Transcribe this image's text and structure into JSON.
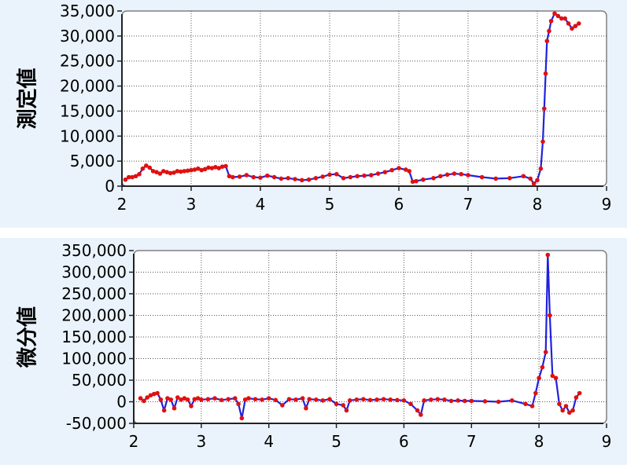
{
  "chart_data": [
    {
      "type": "line",
      "ylabel": "測定値",
      "xlim": [
        2,
        9
      ],
      "ylim": [
        0,
        35000
      ],
      "xticks": [
        "2",
        "3",
        "4",
        "5",
        "6",
        "7",
        "8",
        "9"
      ],
      "yticks": [
        "0",
        "5,000",
        "10,000",
        "15,000",
        "20,000",
        "25,000",
        "30,000",
        "35,000"
      ],
      "grid": true,
      "line_color": "#2020e0",
      "marker_color": "#e01010",
      "series": [
        {
          "x": [
            2.05,
            2.1,
            2.15,
            2.2,
            2.25,
            2.3,
            2.35,
            2.4,
            2.45,
            2.5,
            2.55,
            2.6,
            2.65,
            2.7,
            2.75,
            2.8,
            2.85,
            2.9,
            2.95,
            3.0,
            3.05,
            3.1,
            3.15,
            3.2,
            3.25,
            3.3,
            3.35,
            3.4,
            3.45,
            3.5,
            3.55,
            3.6,
            3.7,
            3.8,
            3.9,
            4.0,
            4.1,
            4.2,
            4.3,
            4.4,
            4.5,
            4.6,
            4.7,
            4.8,
            4.9,
            5.0,
            5.1,
            5.2,
            5.3,
            5.4,
            5.5,
            5.6,
            5.7,
            5.8,
            5.9,
            6.0,
            6.1,
            6.15,
            6.2,
            6.25,
            6.35,
            6.5,
            6.6,
            6.7,
            6.8,
            6.9,
            7.0,
            7.2,
            7.4,
            7.6,
            7.8,
            7.9,
            7.95,
            8.0,
            8.05,
            8.08,
            8.1,
            8.12,
            8.14,
            8.17,
            8.2,
            8.25,
            8.3,
            8.35,
            8.4,
            8.45,
            8.5,
            8.55,
            8.6
          ],
          "y": [
            1300,
            1800,
            1800,
            2000,
            2400,
            3500,
            4100,
            3700,
            3000,
            2800,
            2500,
            3000,
            2800,
            2600,
            2700,
            3000,
            2900,
            3000,
            3100,
            3200,
            3300,
            3500,
            3200,
            3400,
            3700,
            3600,
            3800,
            3600,
            3900,
            4000,
            2000,
            1800,
            1900,
            2200,
            1800,
            1700,
            2100,
            1800,
            1500,
            1600,
            1400,
            1200,
            1300,
            1600,
            1900,
            2300,
            2400,
            1600,
            1800,
            2000,
            2100,
            2200,
            2500,
            2800,
            3200,
            3600,
            3300,
            3000,
            900,
            1000,
            1300,
            1600,
            2000,
            2300,
            2500,
            2400,
            2200,
            1800,
            1500,
            1600,
            2000,
            1500,
            500,
            1200,
            3500,
            8900,
            15500,
            22500,
            29000,
            31000,
            33000,
            34500,
            34000,
            33500,
            33500,
            32500,
            31500,
            32000,
            32500
          ]
        }
      ]
    },
    {
      "type": "line",
      "ylabel": "微分値",
      "xlim": [
        2,
        9
      ],
      "ylim": [
        -50000,
        350000
      ],
      "xticks": [
        "2",
        "3",
        "4",
        "5",
        "6",
        "7",
        "8",
        "9"
      ],
      "yticks": [
        "-50,000",
        "0",
        "50,000",
        "100,000",
        "150,000",
        "200,000",
        "250,000",
        "300,000",
        "350,000"
      ],
      "grid": true,
      "line_color": "#2020e0",
      "marker_color": "#e01010",
      "series": [
        {
          "x": [
            2.1,
            2.15,
            2.2,
            2.25,
            2.3,
            2.35,
            2.4,
            2.45,
            2.5,
            2.55,
            2.6,
            2.65,
            2.7,
            2.75,
            2.8,
            2.85,
            2.9,
            2.95,
            3.0,
            3.1,
            3.2,
            3.3,
            3.4,
            3.5,
            3.55,
            3.6,
            3.65,
            3.7,
            3.8,
            3.9,
            4.0,
            4.1,
            4.2,
            4.3,
            4.4,
            4.5,
            4.55,
            4.6,
            4.7,
            4.8,
            4.9,
            5.0,
            5.1,
            5.15,
            5.2,
            5.3,
            5.4,
            5.5,
            5.6,
            5.7,
            5.8,
            5.9,
            6.0,
            6.1,
            6.2,
            6.25,
            6.3,
            6.4,
            6.5,
            6.6,
            6.7,
            6.8,
            6.9,
            7.0,
            7.2,
            7.4,
            7.6,
            7.8,
            7.9,
            7.95,
            8.0,
            8.05,
            8.1,
            8.13,
            8.16,
            8.2,
            8.25,
            8.3,
            8.35,
            8.4,
            8.45,
            8.5,
            8.55,
            8.6
          ],
          "y": [
            8000,
            2000,
            10000,
            15000,
            18000,
            20000,
            5000,
            -20000,
            8000,
            5000,
            -15000,
            10000,
            5000,
            8000,
            5000,
            -10000,
            6000,
            8000,
            5000,
            6000,
            8000,
            4000,
            6000,
            8000,
            -5000,
            -38000,
            5000,
            8000,
            6000,
            5000,
            8000,
            4000,
            -8000,
            6000,
            5000,
            8000,
            -15000,
            6000,
            5000,
            3000,
            6000,
            -5000,
            -8000,
            -20000,
            3000,
            5000,
            6000,
            4000,
            5000,
            6000,
            5000,
            4000,
            3000,
            -5000,
            -20000,
            -30000,
            3000,
            5000,
            6000,
            5000,
            2000,
            3000,
            2000,
            2000,
            1000,
            0,
            3000,
            -5000,
            -10000,
            20000,
            55000,
            80000,
            115000,
            340000,
            200000,
            60000,
            55000,
            -5000,
            -20000,
            -10000,
            -25000,
            -20000,
            10000,
            20000
          ]
        }
      ]
    }
  ]
}
